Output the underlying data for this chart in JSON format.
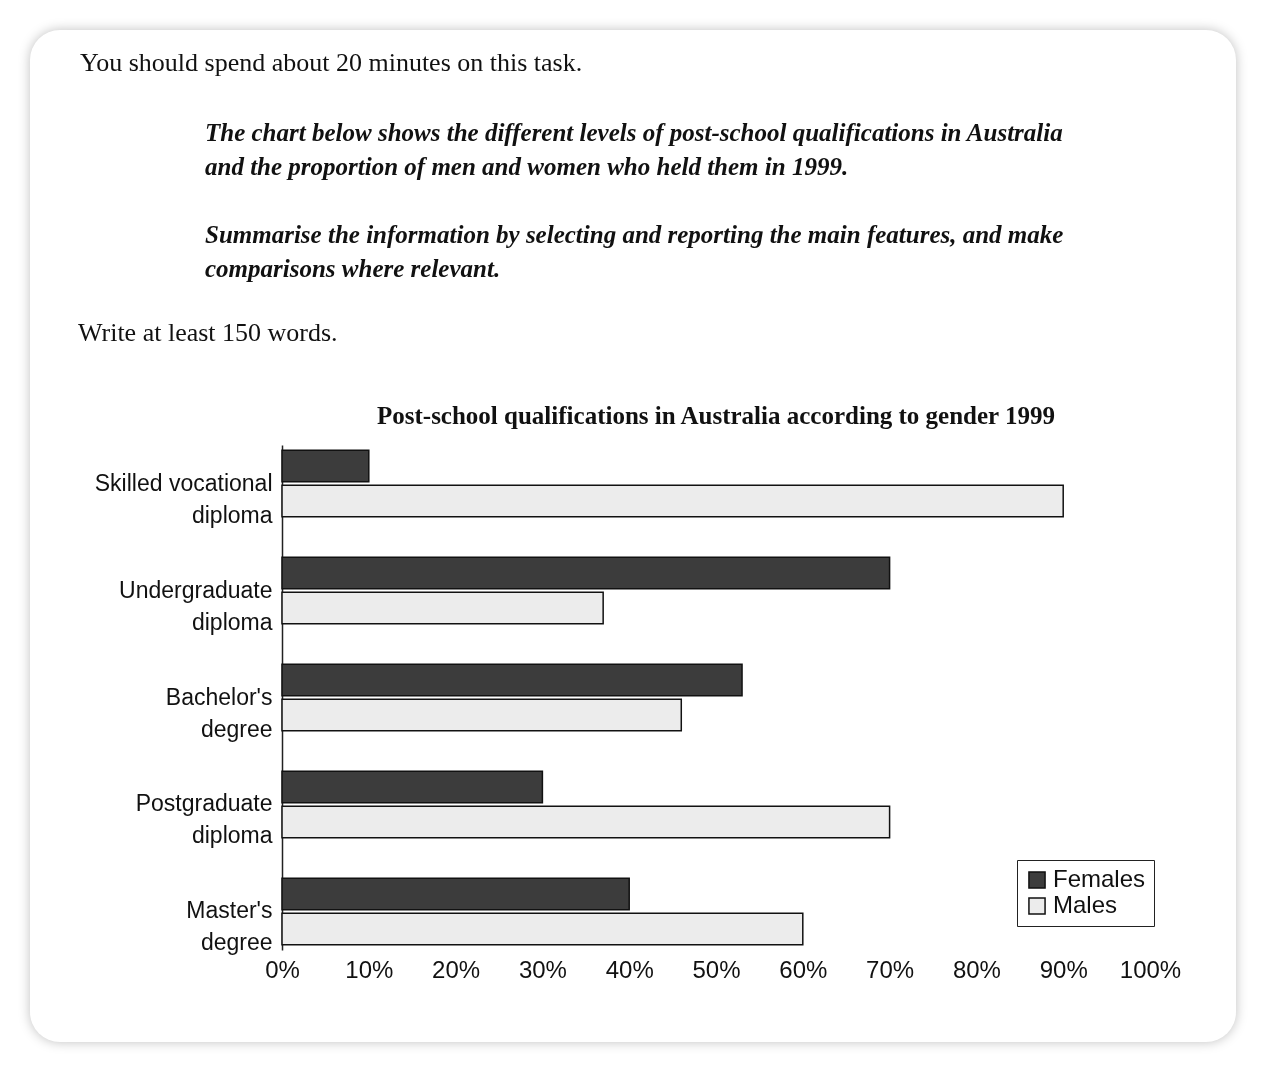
{
  "chart_data": {
    "type": "bar",
    "orientation": "horizontal",
    "title": "Post-school qualifications in Australia according to gender 1999",
    "annotations": [
      "You should spend about 20 minutes on this task.",
      "The chart below shows the different levels of post-school qualifications in Australia and the proportion of men and women who held them in 1999.",
      "Summarise the information by selecting and reporting the main features, and make comparisons where relevant.",
      "Write at least 150 words."
    ],
    "categories": [
      "Skilled vocational diploma",
      "Undergraduate diploma",
      "Bachelor's degree",
      "Postgraduate diploma",
      "Master's degree"
    ],
    "series": [
      {
        "name": "Females",
        "color": "#3c3c3c",
        "values": [
          10,
          70,
          53,
          30,
          40
        ]
      },
      {
        "name": "Males",
        "color": "#ececec",
        "values": [
          90,
          37,
          46,
          70,
          60
        ]
      }
    ],
    "xlim": [
      0,
      100
    ],
    "xticks": [
      {
        "value": 0,
        "label": "0%"
      },
      {
        "value": 10,
        "label": "10%"
      },
      {
        "value": 20,
        "label": "20%"
      },
      {
        "value": 30,
        "label": "30%"
      },
      {
        "value": 40,
        "label": "40%"
      },
      {
        "value": 50,
        "label": "50%"
      },
      {
        "value": 60,
        "label": "60%"
      },
      {
        "value": 70,
        "label": "70%"
      },
      {
        "value": 80,
        "label": "80%"
      },
      {
        "value": 90,
        "label": "90%"
      },
      {
        "value": 100,
        "label": "100%"
      }
    ],
    "grid": false,
    "legend": "bottom right"
  }
}
